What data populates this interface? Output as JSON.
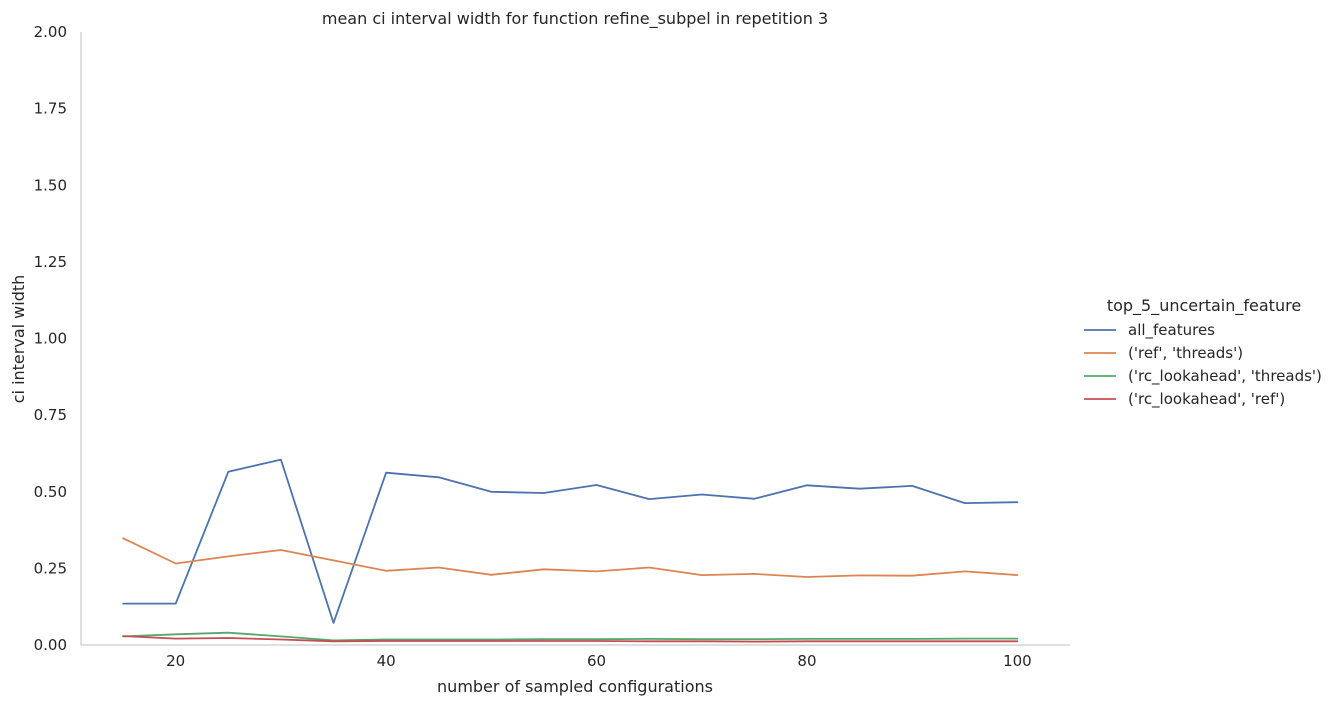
{
  "chart_data": {
    "type": "line",
    "title": "mean ci interval width for function refine_subpel in repetition 3",
    "xlabel": "number of sampled configurations",
    "ylabel": "ci interval width",
    "xlim": [
      11,
      105
    ],
    "ylim": [
      0,
      2
    ],
    "xticks": [
      20,
      40,
      60,
      80,
      100
    ],
    "yticks": [
      0.0,
      0.25,
      0.5,
      0.75,
      1.0,
      1.25,
      1.5,
      1.75,
      2.0
    ],
    "ytick_labels": [
      "0.00",
      "0.25",
      "0.50",
      "0.75",
      "1.00",
      "1.25",
      "1.50",
      "1.75",
      "2.00"
    ],
    "grid": false,
    "legend_title": "top_5_uncertain_feature",
    "legend_position": "right",
    "x": [
      15,
      20,
      25,
      30,
      35,
      40,
      45,
      50,
      55,
      60,
      65,
      70,
      75,
      80,
      85,
      90,
      95,
      100
    ],
    "series": [
      {
        "name": "all_features",
        "color": "#4c72b0",
        "values": [
          0.135,
          0.135,
          0.565,
          0.605,
          0.072,
          0.562,
          0.547,
          0.5,
          0.496,
          0.522,
          0.476,
          0.491,
          0.477,
          0.521,
          0.51,
          0.519,
          0.463,
          0.466
        ]
      },
      {
        "name": "('ref', 'threads')",
        "color": "#dd8452",
        "values": [
          0.348,
          0.266,
          0.289,
          0.31,
          0.276,
          0.242,
          0.253,
          0.229,
          0.247,
          0.24,
          0.253,
          0.228,
          0.232,
          0.222,
          0.227,
          0.226,
          0.24,
          0.228
        ]
      },
      {
        "name": "('rc_lookahead', 'threads')",
        "color": "#55a868",
        "values": [
          0.028,
          0.035,
          0.04,
          0.028,
          0.015,
          0.018,
          0.018,
          0.018,
          0.019,
          0.019,
          0.02,
          0.019,
          0.019,
          0.02,
          0.02,
          0.02,
          0.021,
          0.021
        ]
      },
      {
        "name": "('rc_lookahead', 'ref')",
        "color": "#c44e52",
        "values": [
          0.029,
          0.021,
          0.023,
          0.018,
          0.012,
          0.013,
          0.013,
          0.013,
          0.013,
          0.013,
          0.012,
          0.012,
          0.011,
          0.012,
          0.012,
          0.012,
          0.012,
          0.012
        ]
      }
    ]
  }
}
